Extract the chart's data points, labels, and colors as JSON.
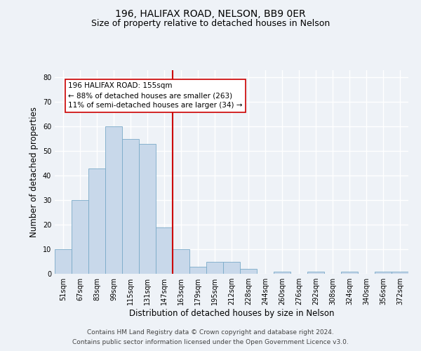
{
  "title": "196, HALIFAX ROAD, NELSON, BB9 0ER",
  "subtitle": "Size of property relative to detached houses in Nelson",
  "xlabel": "Distribution of detached houses by size in Nelson",
  "ylabel": "Number of detached properties",
  "bar_labels": [
    "51sqm",
    "67sqm",
    "83sqm",
    "99sqm",
    "115sqm",
    "131sqm",
    "147sqm",
    "163sqm",
    "179sqm",
    "195sqm",
    "212sqm",
    "228sqm",
    "244sqm",
    "260sqm",
    "276sqm",
    "292sqm",
    "308sqm",
    "324sqm",
    "340sqm",
    "356sqm",
    "372sqm"
  ],
  "bar_values": [
    10,
    30,
    43,
    60,
    55,
    53,
    19,
    10,
    3,
    5,
    5,
    2,
    0,
    1,
    0,
    1,
    0,
    1,
    0,
    1,
    1
  ],
  "bar_color": "#c8d8ea",
  "bar_edge_color": "#7aaac8",
  "vline_color": "#cc0000",
  "annotation_title": "196 HALIFAX ROAD: 155sqm",
  "annotation_line1": "← 88% of detached houses are smaller (263)",
  "annotation_line2": "11% of semi-detached houses are larger (34) →",
  "annotation_box_color": "#ffffff",
  "annotation_box_edge_color": "#cc0000",
  "ylim": [
    0,
    83
  ],
  "yticks": [
    0,
    10,
    20,
    30,
    40,
    50,
    60,
    70,
    80
  ],
  "footer1": "Contains HM Land Registry data © Crown copyright and database right 2024.",
  "footer2": "Contains public sector information licensed under the Open Government Licence v3.0.",
  "background_color": "#eef2f7",
  "grid_color": "#ffffff",
  "title_fontsize": 10,
  "subtitle_fontsize": 9,
  "axis_label_fontsize": 8.5,
  "tick_fontsize": 7,
  "footer_fontsize": 6.5,
  "annot_fontsize": 7.5
}
